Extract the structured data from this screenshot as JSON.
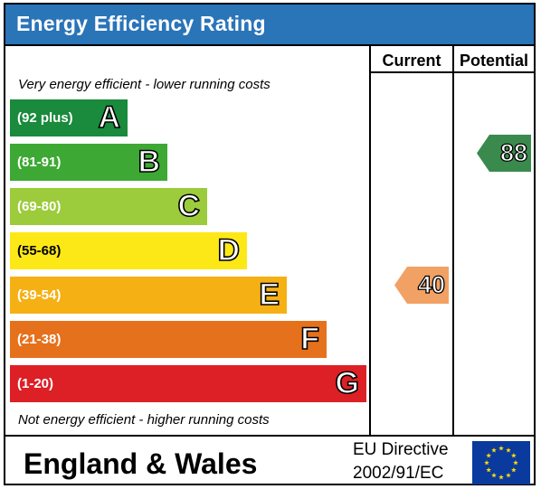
{
  "header": {
    "title": "Energy Efficiency Rating",
    "background": "#2a74b8"
  },
  "columns": {
    "current": "Current",
    "potential": "Potential"
  },
  "notes": {
    "top": "Very energy efficient - lower running costs",
    "bottom": "Not energy efficient - higher running costs"
  },
  "bands": [
    {
      "letter": "A",
      "range": "(92 plus)",
      "color": "#1a8a3c"
    },
    {
      "letter": "B",
      "range": "(81-91)",
      "color": "#3da934"
    },
    {
      "letter": "C",
      "range": "(69-80)",
      "color": "#9ccb3b"
    },
    {
      "letter": "D",
      "range": "(55-68)",
      "color": "#fde817"
    },
    {
      "letter": "E",
      "range": "(39-54)",
      "color": "#f5b014"
    },
    {
      "letter": "F",
      "range": "(21-38)",
      "color": "#e6711c"
    },
    {
      "letter": "G",
      "range": "(1-20)",
      "color": "#dd1f26"
    }
  ],
  "ratings": {
    "current": {
      "value": "40",
      "band": "E",
      "color": "#f1a163"
    },
    "potential": {
      "value": "88",
      "band": "B",
      "color": "#3a8a4e"
    }
  },
  "footer": {
    "region": "England & Wales",
    "directive_line1": "EU Directive",
    "directive_line2": "2002/91/EC",
    "flag_icon": "eu-flag-icon",
    "flag_color": "#0b3a9e",
    "star_color": "#ffdd00"
  }
}
